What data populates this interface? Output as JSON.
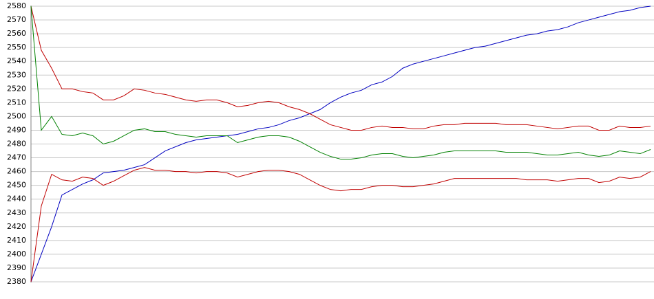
{
  "chart_data": {
    "type": "line",
    "categories": [
      null,
      null,
      null,
      null,
      null,
      null,
      null,
      null,
      null,
      null,
      null,
      null,
      null,
      null,
      null,
      null,
      null,
      null,
      null,
      null,
      null,
      null,
      null,
      null,
      null,
      null,
      null,
      null,
      null,
      null,
      null,
      null,
      null,
      null,
      null,
      null,
      null,
      null,
      null,
      null,
      null,
      null,
      null,
      null,
      null,
      null,
      null,
      null,
      null,
      null,
      null,
      null,
      null,
      null,
      null,
      null,
      null,
      null,
      null,
      null,
      null
    ],
    "series": [
      {
        "color": "#0000c0",
        "values": [
          2380,
          2400,
          2420,
          2443,
          2447,
          2451,
          2454,
          2459,
          2460,
          2461,
          2463,
          2465,
          2470,
          2475,
          2478,
          2481,
          2483,
          2484,
          2485,
          2486,
          2487,
          2489,
          2491,
          2492,
          2494,
          2497,
          2499,
          2502,
          2505,
          2510,
          2514,
          2517,
          2519,
          2523,
          2525,
          2529,
          2535,
          2538,
          2540,
          2542,
          2544,
          2546,
          2548,
          2550,
          2551,
          2553,
          2555,
          2557,
          2559,
          2560,
          2562,
          2563,
          2565,
          2568,
          2570,
          2572,
          2574,
          2576,
          2577,
          2579,
          2580
        ]
      },
      {
        "color": "#c00000",
        "values": [
          2580,
          2548,
          2535,
          2520,
          2520,
          2518,
          2517,
          2512,
          2512,
          2515,
          2520,
          2519,
          2517,
          2516,
          2514,
          2512,
          2511,
          2512,
          2512,
          2510,
          2507,
          2508,
          2510,
          2511,
          2510,
          2507,
          2505,
          2502,
          2498,
          2494,
          2492,
          2490,
          2490,
          2492,
          2493,
          2492,
          2492,
          2491,
          2491,
          2493,
          2494,
          2494,
          2495,
          2495,
          2495,
          2495,
          2494,
          2494,
          2494,
          2493,
          2492,
          2491,
          2492,
          2493,
          2493,
          2490,
          2490,
          2493,
          2492,
          2492,
          2493
        ]
      },
      {
        "color": "#008000",
        "values": [
          2580,
          2490,
          2500,
          2487,
          2486,
          2488,
          2486,
          2480,
          2482,
          2486,
          2490,
          2491,
          2489,
          2489,
          2487,
          2486,
          2485,
          2486,
          2486,
          2486,
          2481,
          2483,
          2485,
          2486,
          2486,
          2485,
          2482,
          2478,
          2474,
          2471,
          2469,
          2469,
          2470,
          2472,
          2473,
          2473,
          2471,
          2470,
          2471,
          2472,
          2474,
          2475,
          2475,
          2475,
          2475,
          2475,
          2474,
          2474,
          2474,
          2473,
          2472,
          2472,
          2473,
          2474,
          2472,
          2471,
          2472,
          2475,
          2474,
          2473,
          2476
        ]
      },
      {
        "color": "#c00000",
        "values": [
          2380,
          2435,
          2458,
          2454,
          2453,
          2456,
          2455,
          2450,
          2453,
          2457,
          2461,
          2463,
          2461,
          2461,
          2460,
          2460,
          2459,
          2460,
          2460,
          2459,
          2456,
          2458,
          2460,
          2461,
          2461,
          2460,
          2458,
          2454,
          2450,
          2447,
          2446,
          2447,
          2447,
          2449,
          2450,
          2450,
          2449,
          2449,
          2450,
          2451,
          2453,
          2455,
          2455,
          2455,
          2455,
          2455,
          2455,
          2455,
          2454,
          2454,
          2454,
          2453,
          2454,
          2455,
          2455,
          2452,
          2453,
          2456,
          2455,
          2456,
          2460
        ]
      }
    ],
    "ylim": [
      2380,
      2580
    ],
    "yticks": [
      2380,
      2390,
      2400,
      2410,
      2420,
      2430,
      2440,
      2450,
      2460,
      2470,
      2480,
      2490,
      2500,
      2510,
      2520,
      2530,
      2540,
      2550,
      2560,
      2570,
      2580
    ],
    "grid": true
  }
}
